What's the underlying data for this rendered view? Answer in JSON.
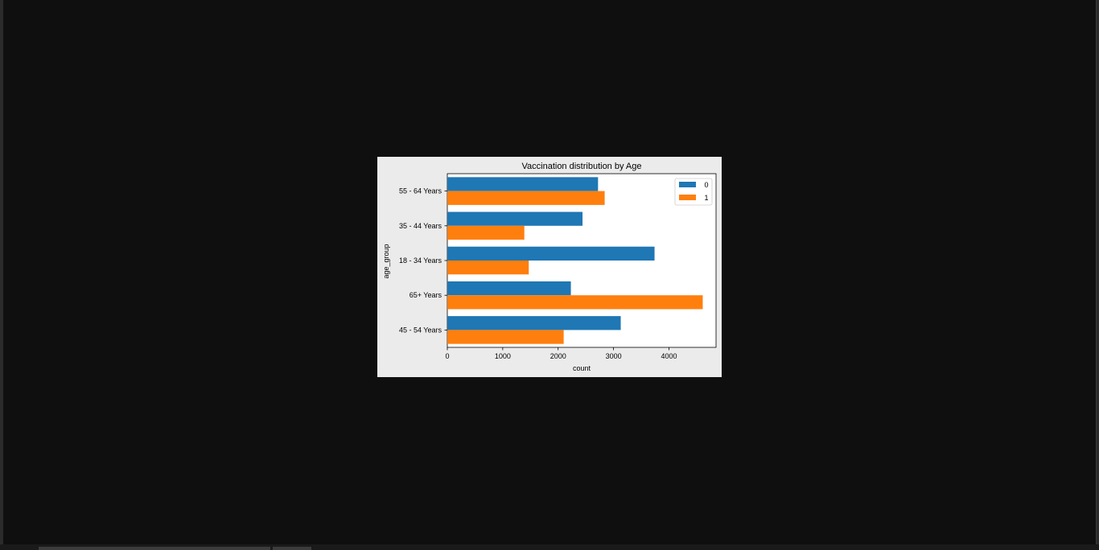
{
  "chart_data": {
    "type": "bar",
    "orientation": "horizontal",
    "title": "Vaccination distribution by Age",
    "xlabel": "count",
    "ylabel": "age_group",
    "categories": [
      "55 - 64 Years",
      "35 - 44 Years",
      "18 - 34 Years",
      "65+ Years",
      "45 - 54 Years"
    ],
    "series": [
      {
        "name": "0",
        "color": "#1f77b4",
        "values": [
          2720,
          2440,
          3740,
          2230,
          3130
        ]
      },
      {
        "name": "1",
        "color": "#ff7f0e",
        "values": [
          2840,
          1390,
          1470,
          4610,
          2100
        ]
      }
    ],
    "xlim": [
      0,
      4850
    ],
    "xticks": [
      0,
      1000,
      2000,
      3000,
      4000
    ],
    "legend": {
      "title": "",
      "position": "top-right",
      "entries": [
        "0",
        "1"
      ]
    },
    "grid": false
  }
}
